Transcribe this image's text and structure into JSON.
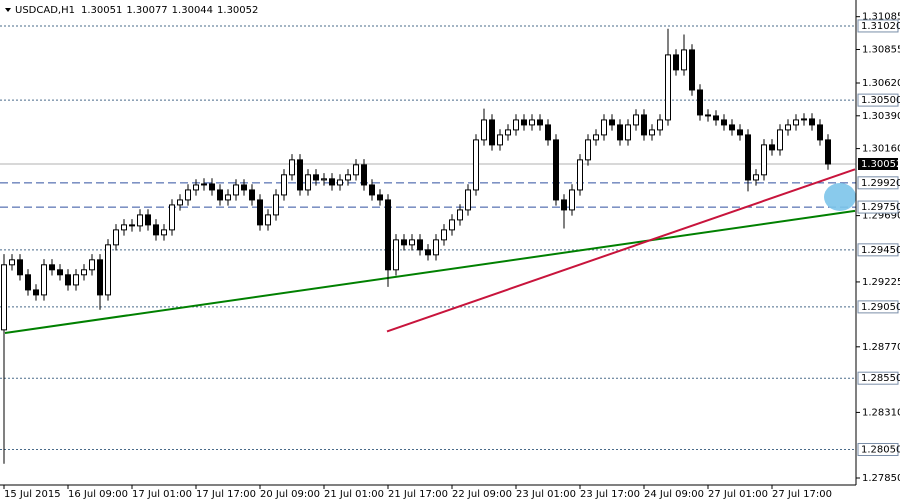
{
  "chart_data": {
    "type": "candlestick",
    "symbol": "USDCAD,H1",
    "header_values": [
      1.30051,
      1.30077,
      1.30044,
      1.30052
    ],
    "categories": [
      "15 Jul 2015",
      null,
      null,
      null,
      null,
      null,
      null,
      null,
      "16 Jul 09:00",
      null,
      null,
      null,
      null,
      null,
      null,
      null,
      "17 Jul 01:00",
      null,
      null,
      null,
      null,
      null,
      null,
      null,
      "17 Jul 17:00",
      null,
      null,
      null,
      null,
      null,
      null,
      null,
      "20 Jul 09:00",
      null,
      null,
      null,
      null,
      null,
      null,
      null,
      "21 Jul 01:00",
      null,
      null,
      null,
      null,
      null,
      null,
      null,
      "21 Jul 17:00",
      null,
      null,
      null,
      null,
      null,
      null,
      null,
      "22 Jul 09:00",
      null,
      null,
      null,
      null,
      null,
      null,
      null,
      "23 Jul 01:00",
      null,
      null,
      null,
      null,
      null,
      null,
      null,
      "23 Jul 17:00",
      null,
      null,
      null,
      null,
      null,
      null,
      null,
      "24 Jul 09:00",
      null,
      null,
      null,
      null,
      null,
      null,
      null,
      "27 Jul 01:00",
      null,
      null,
      null,
      null,
      null,
      null,
      null,
      "27 Jul 17:00",
      null,
      null,
      null,
      null,
      null,
      null,
      null
    ],
    "open": [
      1.28889,
      1.29345,
      1.2938,
      1.29275,
      1.29169,
      1.29134,
      1.29345,
      1.2931,
      1.29275,
      1.29204,
      1.29275,
      1.2931,
      1.2938,
      1.29134,
      1.29485,
      1.2959,
      1.29625,
      1.29618,
      1.29695,
      1.29625,
      1.29555,
      1.2959,
      1.29765,
      1.298,
      1.2987,
      1.29905,
      1.29912,
      1.2987,
      1.298,
      1.29835,
      1.29905,
      1.2987,
      1.298,
      1.29625,
      1.29695,
      1.29835,
      1.29976,
      1.30081,
      1.2987,
      1.29976,
      1.2994,
      1.29948,
      1.29905,
      1.2994,
      1.29976,
      1.30046,
      1.29905,
      1.29835,
      1.298,
      1.2931,
      1.2952,
      1.29485,
      1.2952,
      1.2945,
      1.29415,
      1.2952,
      1.2959,
      1.2966,
      1.2973,
      1.2987,
      1.30221,
      1.30361,
      1.30186,
      1.30256,
      1.30291,
      1.30361,
      1.30326,
      1.30361,
      1.30326,
      1.30221,
      1.298,
      1.2973,
      1.2987,
      1.30081,
      1.30221,
      1.30256,
      1.30361,
      1.30326,
      1.30221,
      1.30326,
      1.30396,
      1.30256,
      1.30291,
      1.30361,
      1.30817,
      1.30712,
      1.30852,
      1.30571,
      1.30396,
      1.30389,
      1.30361,
      1.30326,
      1.30291,
      1.30256,
      1.2994,
      1.29976,
      1.30186,
      1.30151,
      1.30291,
      1.30326,
      1.30361,
      1.30368,
      1.30326,
      1.30221
    ],
    "high": [
      1.2942,
      1.2942,
      1.2942,
      1.29315,
      1.29209,
      1.29385,
      1.29385,
      1.2935,
      1.29315,
      1.29315,
      1.2935,
      1.2942,
      1.2942,
      1.29525,
      1.2963,
      1.29665,
      1.29665,
      1.29735,
      1.29735,
      1.29665,
      1.2963,
      1.29805,
      1.2984,
      1.2991,
      1.29945,
      1.29952,
      1.29952,
      1.2991,
      1.29875,
      1.29945,
      1.29945,
      1.2991,
      1.2984,
      1.29735,
      1.29875,
      1.30016,
      1.30121,
      1.30121,
      1.30016,
      1.30016,
      1.29988,
      1.29988,
      1.2998,
      1.30016,
      1.30086,
      1.30086,
      1.29945,
      1.29875,
      1.2984,
      1.2956,
      1.2956,
      1.2956,
      1.2956,
      1.2949,
      1.2956,
      1.2963,
      1.297,
      1.2977,
      1.2991,
      1.30261,
      1.3044,
      1.30401,
      1.30296,
      1.30331,
      1.30401,
      1.30401,
      1.30401,
      1.30401,
      1.30366,
      1.30261,
      1.2984,
      1.2991,
      1.30121,
      1.30261,
      1.30296,
      1.30401,
      1.30401,
      1.30366,
      1.30366,
      1.30436,
      1.30436,
      1.30331,
      1.30401,
      1.31,
      1.30857,
      1.3096,
      1.30892,
      1.30611,
      1.30436,
      1.30429,
      1.30401,
      1.30366,
      1.30331,
      1.30296,
      1.30016,
      1.30226,
      1.30226,
      1.30331,
      1.30366,
      1.30401,
      1.30408,
      1.30408,
      1.30366,
      1.30261
    ],
    "low": [
      1.2795,
      1.29305,
      1.29235,
      1.29129,
      1.29094,
      1.29094,
      1.2927,
      1.29235,
      1.29164,
      1.29164,
      1.29235,
      1.2927,
      1.2903,
      1.29094,
      1.29445,
      1.2955,
      1.29578,
      1.29578,
      1.29585,
      1.29515,
      1.29515,
      1.2955,
      1.29725,
      1.2976,
      1.2983,
      1.29865,
      1.2983,
      1.2976,
      1.2976,
      1.29795,
      1.2983,
      1.2976,
      1.29585,
      1.29585,
      1.29655,
      1.29795,
      1.29936,
      1.2983,
      1.2983,
      1.299,
      1.299,
      1.29865,
      1.29865,
      1.299,
      1.29936,
      1.29865,
      1.29795,
      1.2976,
      1.2919,
      1.2927,
      1.29445,
      1.29445,
      1.2941,
      1.29375,
      1.29375,
      1.2948,
      1.2955,
      1.2962,
      1.2969,
      1.2983,
      1.30181,
      1.30146,
      1.30146,
      1.30216,
      1.30251,
      1.30286,
      1.30286,
      1.30286,
      1.30181,
      1.2976,
      1.296,
      1.2969,
      1.2983,
      1.30041,
      1.30181,
      1.30216,
      1.30286,
      1.30181,
      1.30181,
      1.30286,
      1.30216,
      1.30216,
      1.30251,
      1.30321,
      1.30672,
      1.30672,
      1.30531,
      1.30356,
      1.30349,
      1.30321,
      1.30286,
      1.30251,
      1.30216,
      1.2986,
      1.299,
      1.29936,
      1.30111,
      1.30111,
      1.30251,
      1.30286,
      1.30321,
      1.30286,
      1.30181,
      1.30012
    ],
    "close": [
      1.29345,
      1.2938,
      1.29275,
      1.29169,
      1.29134,
      1.29345,
      1.2931,
      1.29275,
      1.29204,
      1.29275,
      1.2931,
      1.2938,
      1.29134,
      1.29485,
      1.2959,
      1.29625,
      1.29618,
      1.29695,
      1.29625,
      1.29555,
      1.2959,
      1.29765,
      1.298,
      1.2987,
      1.29905,
      1.29912,
      1.2987,
      1.298,
      1.29835,
      1.29905,
      1.2987,
      1.298,
      1.29625,
      1.29695,
      1.29835,
      1.29976,
      1.30081,
      1.2987,
      1.29976,
      1.2994,
      1.29948,
      1.29905,
      1.2994,
      1.29976,
      1.30046,
      1.29905,
      1.29835,
      1.298,
      1.2931,
      1.2952,
      1.29485,
      1.2952,
      1.2945,
      1.29415,
      1.2952,
      1.2959,
      1.2966,
      1.2973,
      1.2987,
      1.30221,
      1.30361,
      1.30186,
      1.30256,
      1.30291,
      1.30361,
      1.30326,
      1.30361,
      1.30326,
      1.30221,
      1.298,
      1.2973,
      1.2987,
      1.30081,
      1.30221,
      1.30256,
      1.30361,
      1.30326,
      1.30221,
      1.30326,
      1.30396,
      1.30256,
      1.30291,
      1.30361,
      1.30817,
      1.30712,
      1.30852,
      1.30571,
      1.30396,
      1.30389,
      1.30361,
      1.30326,
      1.30291,
      1.30256,
      1.2994,
      1.29976,
      1.30186,
      1.30151,
      1.30291,
      1.30326,
      1.30361,
      1.30368,
      1.30326,
      1.30221,
      1.30052
    ],
    "ylim": [
      1.27801,
      1.31202
    ],
    "yticks": [
      1.31085,
      1.30855,
      {
        "value": 1.3062,
        "label": "1.30620"
      },
      {
        "value": 1.3039,
        "label": "1.30390"
      },
      {
        "value": 1.3016,
        "label": "1.30160"
      },
      {
        "value": 1.2969,
        "label": "1.29690"
      },
      1.29225,
      {
        "value": 1.2877,
        "label": "1.28770"
      },
      {
        "value": 1.2831,
        "label": "1.28310"
      },
      {
        "value": 1.2785,
        "label": "1.27850"
      }
    ],
    "levels": [
      {
        "value": 1.3102,
        "label": "1.31020",
        "style": "dotted",
        "color": "#4a6b8a"
      },
      {
        "value": 1.305,
        "label": "1.30500",
        "style": "dotted",
        "color": "#4a6b8a"
      },
      {
        "value": 1.2992,
        "label": "1.29920",
        "style": "dashed",
        "color": "#3050a0"
      },
      {
        "value": 1.2975,
        "label": "1.29750",
        "style": "dashed",
        "color": "#3050a0"
      },
      {
        "value": 1.2945,
        "label": "1.29450",
        "style": "dotted",
        "color": "#4a6b8a"
      },
      {
        "value": 1.2905,
        "label": "1.29050",
        "style": "dotted",
        "color": "#4a6b8a"
      },
      {
        "value": 1.2855,
        "label": "1.28550",
        "style": "dotted",
        "color": "#4a6b8a"
      },
      {
        "value": 1.2805,
        "label": "1.28050",
        "style": "dotted",
        "color": "#4a6b8a"
      }
    ],
    "current_price": 1.30052,
    "trendlines": [
      {
        "color": "#008000",
        "points": [
          [
            0.125,
            1.28867
          ],
          [
            106.375,
            1.29723
          ]
        ]
      },
      {
        "color": "#c8143c",
        "points": [
          [
            47.875,
            1.28878
          ],
          [
            106.375,
            1.30015
          ]
        ]
      }
    ]
  }
}
